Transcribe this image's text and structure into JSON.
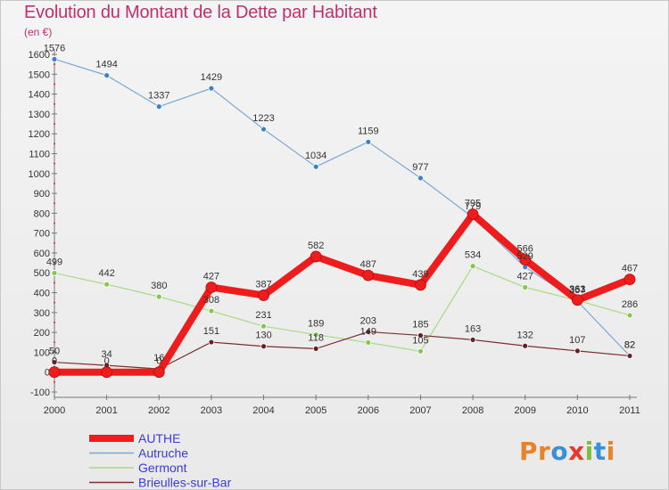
{
  "title": "Evolution du Montant de la Dette par Habitant",
  "subtitle": "(en €)",
  "logo": {
    "text": "Proxiti",
    "colors": [
      "#e8832a",
      "#e8832a",
      "#3a8fd6",
      "#e83a2a",
      "#7bbf3a",
      "#3a8fd6",
      "#e8832a"
    ]
  },
  "chart_data": {
    "type": "line",
    "x": [
      2000,
      2001,
      2002,
      2003,
      2004,
      2005,
      2006,
      2007,
      2008,
      2009,
      2010,
      2011
    ],
    "ylim": [
      -100,
      1600
    ],
    "yticks": [
      -100,
      0,
      100,
      200,
      300,
      400,
      500,
      600,
      700,
      800,
      900,
      1000,
      1100,
      1200,
      1300,
      1400,
      1500,
      1600
    ],
    "grid": false,
    "legend_position": "bottom-left",
    "series": [
      {
        "name": "AUTHE",
        "color": "#ee1c1c",
        "values": [
          0,
          0,
          0,
          427,
          387,
          582,
          487,
          439,
          795,
          566,
          363,
          467
        ],
        "labels": [
          "0",
          "0",
          "0",
          "427",
          "387",
          "582",
          "487",
          "439",
          "795",
          "566",
          "363",
          "467"
        ],
        "emphasis": true
      },
      {
        "name": "Autruche",
        "color": "#7aa8d8",
        "marker": "#3a82c8",
        "values": [
          1576,
          1494,
          1337,
          1429,
          1223,
          1034,
          1159,
          977,
          779,
          529,
          357,
          82
        ],
        "labels": [
          "1576",
          "1494",
          "1337",
          "1429",
          "1223",
          "1034",
          "1159",
          "977",
          "779",
          "529",
          "357",
          "82"
        ]
      },
      {
        "name": "Germont",
        "color": "#a6dc82",
        "marker": "#82c84a",
        "values": [
          499,
          442,
          380,
          308,
          231,
          189,
          149,
          105,
          534,
          427,
          361,
          286
        ],
        "labels": [
          "499",
          "442",
          "380",
          "308",
          "231",
          "189",
          "149",
          "105",
          "534",
          "427",
          "361",
          "286"
        ]
      },
      {
        "name": "Brieulles-sur-Bar",
        "color": "#7a3030",
        "marker": "#6a2020",
        "values": [
          50,
          34,
          16,
          151,
          130,
          118,
          203,
          185,
          163,
          132,
          107,
          82
        ],
        "labels": [
          "50",
          "34",
          "16",
          "151",
          "130",
          "118",
          "203",
          "185",
          "163",
          "132",
          "107",
          "82"
        ]
      }
    ]
  }
}
